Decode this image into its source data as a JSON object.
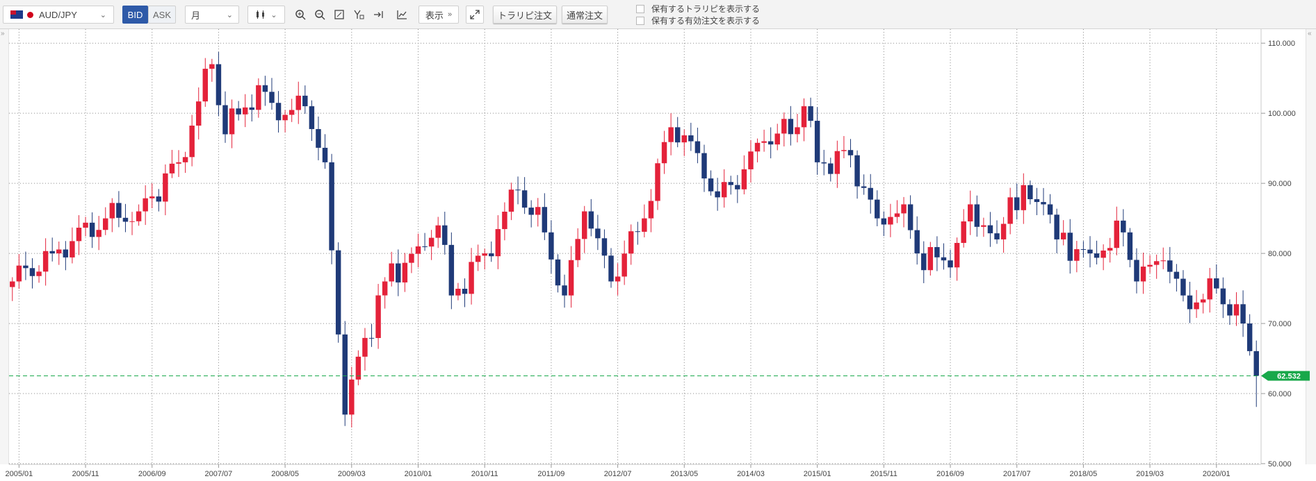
{
  "toolbar": {
    "symbol": "AUD/JPY",
    "bid_label": "BID",
    "ask_label": "ASK",
    "period": "月",
    "display_label": "表示",
    "trail_order_label": "トラリピ注文",
    "normal_order_label": "通常注文",
    "show_trap_label": "保有するトラリピを表示する",
    "show_orders_label": "保有する有効注文を表示する"
  },
  "icons": [
    "flag-au-icon",
    "flag-jp-icon",
    "chevron-down-icon",
    "candlestick-icon",
    "zoom-in-icon",
    "zoom-out-icon",
    "fit-icon",
    "crosshair-icon",
    "jump-latest-icon",
    "indicator-icon",
    "double-chevron-icon",
    "expand-icon"
  ],
  "colors": {
    "up": "#e4223a",
    "down": "#1f3a78",
    "last_price": "#18a84a",
    "grid": "#8a8a8a"
  },
  "chart_data": {
    "type": "candlestick",
    "symbol": "AUD/JPY",
    "timeframe": "月",
    "ylim": [
      50,
      112
    ],
    "yticks": [
      "50.000",
      "60.000",
      "70.000",
      "80.000",
      "90.000",
      "100.000",
      "110.000"
    ],
    "yvals": [
      50,
      60,
      70,
      80,
      90,
      100,
      110
    ],
    "xtick_labels": [
      "2005/01",
      "2005/11",
      "2006/09",
      "2007/07",
      "2008/05",
      "2009/03",
      "2010/01",
      "2010/11",
      "2011/09",
      "2012/07",
      "2013/05",
      "2014/03",
      "2015/01",
      "2015/11",
      "2016/09",
      "2017/07",
      "2018/05",
      "2019/03",
      "2020/01"
    ],
    "xtick_index": [
      1,
      11,
      21,
      31,
      41,
      51,
      61,
      71,
      81,
      91,
      101,
      111,
      121,
      131,
      141,
      151,
      161,
      171,
      181
    ],
    "last_price": 62.532,
    "last_price_label": "62.532",
    "grid": true,
    "anchors": [
      [
        0,
        76.0
      ],
      [
        6,
        80.0
      ],
      [
        14,
        85.0
      ],
      [
        19,
        86.0
      ],
      [
        25,
        93.0
      ],
      [
        30,
        107.0
      ],
      [
        32,
        97.0
      ],
      [
        37,
        104.0
      ],
      [
        40,
        99.0
      ],
      [
        44,
        101.0
      ],
      [
        47,
        93.0
      ],
      [
        50,
        57.0
      ],
      [
        51,
        62.0
      ],
      [
        56,
        76.0
      ],
      [
        61,
        81.0
      ],
      [
        64,
        84.0
      ],
      [
        66,
        74.0
      ],
      [
        71,
        80.0
      ],
      [
        76,
        89.0
      ],
      [
        80,
        83.0
      ],
      [
        83,
        74.0
      ],
      [
        86,
        86.0
      ],
      [
        90,
        76.0
      ],
      [
        95,
        85.0
      ],
      [
        99,
        98.0
      ],
      [
        102,
        96.0
      ],
      [
        106,
        88.0
      ],
      [
        110,
        92.0
      ],
      [
        113,
        96.0
      ],
      [
        118,
        98.0
      ],
      [
        119,
        101.0
      ],
      [
        121,
        93.0
      ],
      [
        126,
        94.0
      ],
      [
        130,
        85.0
      ],
      [
        134,
        87.0
      ],
      [
        136,
        80.0
      ],
      [
        141,
        78.0
      ],
      [
        144,
        87.0
      ],
      [
        148,
        82.0
      ],
      [
        150,
        88.0
      ],
      [
        155,
        87.0
      ],
      [
        157,
        82.0
      ],
      [
        162,
        80.0
      ],
      [
        167,
        83.0
      ],
      [
        169,
        76.0
      ],
      [
        173,
        79.0
      ],
      [
        176,
        74.0
      ],
      [
        178,
        73.0
      ],
      [
        181,
        75.0
      ],
      [
        185,
        70.0
      ],
      [
        187,
        62.5
      ]
    ]
  }
}
